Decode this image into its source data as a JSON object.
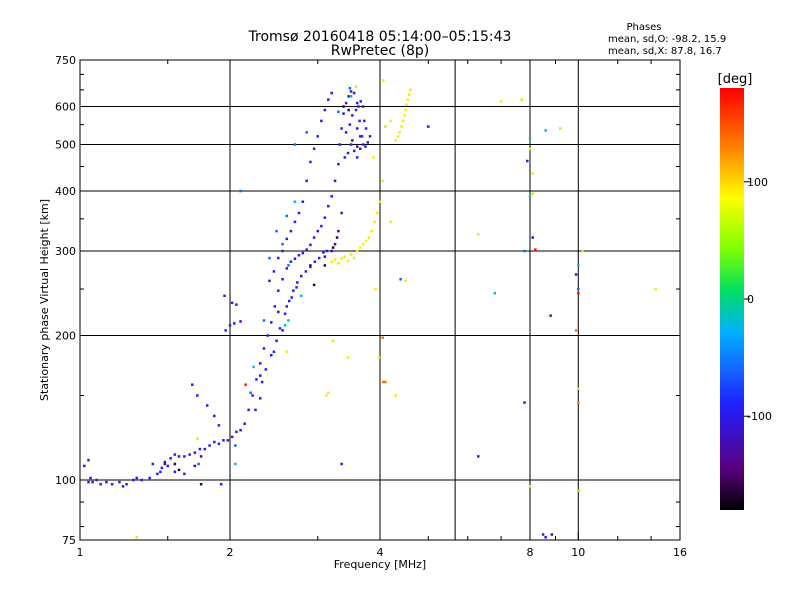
{
  "chart_data": {
    "type": "scatter",
    "title": "Tromsø 20160418 05:14:00–05:15:43",
    "subtitle": "RwPretec (8p)",
    "phases": {
      "title": "Phases",
      "line1": "mean, sd,O: -98.2, 15.9",
      "line2": "mean, sd,X:  87.8, 16.7"
    },
    "xlabel": "Frequency [MHz]",
    "ylabel": "Stationary phase Virtual Height [km]",
    "x_scale": "log",
    "y_scale": "log",
    "xlim": [
      1,
      16
    ],
    "ylim": [
      75,
      750
    ],
    "grid": true,
    "x_ticks": [
      1,
      2,
      4,
      8,
      10,
      16
    ],
    "x_tick_labels": [
      "1",
      "2",
      "4",
      "8",
      "10",
      "16"
    ],
    "x_gridlines": [
      2,
      4,
      5.66,
      8,
      10
    ],
    "y_ticks": [
      75,
      100,
      200,
      300,
      400,
      500,
      600,
      750
    ],
    "y_tick_labels": [
      "75",
      "100",
      "200",
      "300",
      "400",
      "500",
      "600",
      "750"
    ],
    "y_gridlines": [
      100,
      200,
      300,
      400,
      500,
      600
    ],
    "colorbar": {
      "label": "[deg]",
      "range": [
        -180,
        180
      ],
      "ticks": [
        100,
        0,
        -100
      ],
      "tick_labels": [
        "100",
        "0",
        "-100"
      ]
    },
    "series": [
      {
        "phase_deg": -95,
        "points": [
          [
            1.04,
            99
          ],
          [
            1.05,
            101
          ],
          [
            1.06,
            99
          ],
          [
            1.08,
            100
          ],
          [
            1.1,
            98
          ],
          [
            1.13,
            99
          ],
          [
            1.16,
            98
          ],
          [
            1.2,
            99
          ],
          [
            1.24,
            98
          ],
          [
            1.28,
            100
          ],
          [
            1.33,
            100
          ],
          [
            1.38,
            101
          ],
          [
            1.43,
            103
          ],
          [
            1.46,
            106
          ],
          [
            1.48,
            109
          ],
          [
            1.52,
            111
          ],
          [
            1.55,
            113
          ],
          [
            1.58,
            112
          ],
          [
            1.62,
            112
          ],
          [
            1.66,
            113
          ],
          [
            1.7,
            114
          ],
          [
            1.74,
            116
          ],
          [
            1.78,
            116
          ],
          [
            1.82,
            118
          ],
          [
            1.86,
            120
          ],
          [
            1.9,
            119
          ],
          [
            1.94,
            121
          ],
          [
            1.98,
            121
          ],
          [
            2.02,
            123
          ],
          [
            2.06,
            126
          ],
          [
            2.1,
            127
          ],
          [
            2.14,
            131
          ],
          [
            2.18,
            140
          ],
          [
            2.22,
            150
          ],
          [
            2.26,
            162
          ],
          [
            2.3,
            175
          ],
          [
            2.34,
            188
          ],
          [
            2.38,
            200
          ],
          [
            2.42,
            213
          ],
          [
            2.46,
            230
          ],
          [
            2.5,
            248
          ],
          [
            2.55,
            262
          ],
          [
            2.6,
            276
          ],
          [
            2.65,
            285
          ],
          [
            2.7,
            289
          ],
          [
            2.75,
            294
          ],
          [
            2.8,
            297
          ],
          [
            2.85,
            302
          ],
          [
            2.9,
            309
          ],
          [
            2.95,
            320
          ],
          [
            3.0,
            330
          ],
          [
            3.05,
            338
          ],
          [
            3.1,
            352
          ],
          [
            3.15,
            372
          ],
          [
            3.2,
            390
          ],
          [
            3.25,
            420
          ],
          [
            3.3,
            455
          ],
          [
            3.32,
            500
          ],
          [
            3.35,
            540
          ],
          [
            3.38,
            580
          ],
          [
            3.42,
            610
          ],
          [
            3.46,
            630
          ],
          [
            3.5,
            645
          ],
          [
            3.55,
            640
          ],
          [
            3.6,
            610
          ],
          [
            3.64,
            560
          ],
          [
            3.68,
            520
          ],
          [
            3.7,
            500
          ],
          [
            3.74,
            495
          ],
          [
            3.78,
            505
          ],
          [
            3.82,
            520
          ],
          [
            1.02,
            107
          ],
          [
            1.04,
            110
          ],
          [
            1.5,
            107
          ],
          [
            1.55,
            104
          ],
          [
            1.62,
            103
          ],
          [
            1.92,
            98
          ],
          [
            1.96,
            205
          ],
          [
            2.0,
            210
          ],
          [
            2.04,
            212
          ],
          [
            2.1,
            214
          ],
          [
            2.02,
            234
          ],
          [
            2.06,
            232
          ],
          [
            1.95,
            242
          ],
          [
            2.4,
            260
          ],
          [
            2.45,
            272
          ],
          [
            2.5,
            290
          ],
          [
            2.55,
            300
          ],
          [
            2.6,
            318
          ],
          [
            2.65,
            330
          ],
          [
            2.7,
            345
          ],
          [
            2.75,
            360
          ],
          [
            2.8,
            380
          ],
          [
            2.85,
            420
          ],
          [
            2.9,
            460
          ],
          [
            2.95,
            490
          ],
          [
            3.0,
            520
          ],
          [
            3.05,
            560
          ],
          [
            3.1,
            590
          ],
          [
            3.15,
            620
          ],
          [
            3.2,
            640
          ],
          [
            2.3,
            148
          ],
          [
            2.32,
            160
          ],
          [
            2.36,
            170
          ],
          [
            2.42,
            182
          ],
          [
            2.48,
            195
          ],
          [
            2.52,
            207
          ],
          [
            2.58,
            222
          ],
          [
            2.63,
            236
          ],
          [
            2.68,
            248
          ],
          [
            2.73,
            258
          ],
          [
            2.78,
            266
          ],
          [
            2.84,
            272
          ],
          [
            2.9,
            278
          ],
          [
            2.96,
            285
          ],
          [
            3.02,
            290
          ],
          [
            3.08,
            298
          ],
          [
            3.13,
            300
          ],
          [
            3.4,
            470
          ],
          [
            3.45,
            480
          ],
          [
            3.5,
            500
          ],
          [
            3.55,
            485
          ],
          [
            3.6,
            470
          ],
          [
            3.42,
            530
          ],
          [
            3.48,
            550
          ],
          [
            3.52,
            575
          ],
          [
            3.58,
            590
          ],
          [
            3.62,
            600
          ],
          [
            3.66,
            615
          ],
          [
            3.7,
            600
          ],
          [
            3.72,
            560
          ],
          [
            3.75,
            540
          ],
          [
            3.6,
            540
          ],
          [
            3.65,
            520
          ],
          [
            1.22,
            97
          ],
          [
            1.3,
            101
          ],
          [
            1.4,
            108
          ],
          [
            1.45,
            104
          ],
          [
            1.68,
            158
          ],
          [
            1.72,
            150
          ],
          [
            1.8,
            143
          ],
          [
            1.86,
            136
          ],
          [
            1.9,
            130
          ],
          [
            2.25,
            140
          ],
          [
            2.6,
            230
          ],
          [
            2.66,
            240
          ],
          [
            2.72,
            252
          ],
          [
            3.35,
            108
          ],
          [
            5.0,
            545
          ],
          [
            6.3,
            112
          ],
          [
            8.8,
            220
          ],
          [
            8.5,
            77
          ],
          [
            8.6,
            76
          ],
          [
            9.9,
            268
          ],
          [
            7.8,
            145
          ],
          [
            7.9,
            462
          ],
          [
            2.3,
            165
          ],
          [
            2.45,
            185
          ],
          [
            2.55,
            205
          ]
        ]
      },
      {
        "phase_deg": -130,
        "points": [
          [
            1.7,
            107
          ],
          [
            1.75,
            112
          ],
          [
            2.5,
            224
          ],
          [
            2.9,
            280
          ],
          [
            3.1,
            292
          ],
          [
            3.2,
            300
          ],
          [
            3.25,
            310
          ],
          [
            3.3,
            330
          ],
          [
            3.35,
            360
          ],
          [
            3.52,
            510
          ],
          [
            3.6,
            495
          ],
          [
            3.65,
            490
          ],
          [
            1.48,
            108
          ],
          [
            8.1,
            320
          ],
          [
            8.85,
            77
          ]
        ]
      },
      {
        "phase_deg": -160,
        "points": [
          [
            1.55,
            108
          ],
          [
            1.58,
            105
          ],
          [
            2.95,
            255
          ],
          [
            3.1,
            280
          ],
          [
            3.22,
            305
          ],
          [
            3.28,
            320
          ],
          [
            3.38,
            600
          ],
          [
            3.46,
            590
          ],
          [
            1.75,
            98
          ]
        ]
      },
      {
        "phase_deg": -60,
        "points": [
          [
            2.05,
            118
          ],
          [
            2.2,
            152
          ],
          [
            2.34,
            215
          ],
          [
            2.4,
            290
          ],
          [
            2.48,
            330
          ],
          [
            2.55,
            310
          ],
          [
            2.62,
            280
          ],
          [
            2.6,
            355
          ],
          [
            2.7,
            500
          ],
          [
            2.85,
            530
          ],
          [
            3.48,
            655
          ],
          [
            3.3,
            585
          ],
          [
            2.1,
            400
          ],
          [
            4.4,
            262
          ],
          [
            10.0,
            250
          ],
          [
            7.8,
            300
          ],
          [
            1.73,
            108
          ]
        ]
      },
      {
        "phase_deg": -20,
        "points": [
          [
            2.05,
            108
          ],
          [
            2.23,
            172
          ],
          [
            2.58,
            210
          ],
          [
            2.62,
            215
          ],
          [
            2.78,
            242
          ],
          [
            2.7,
            380
          ],
          [
            3.5,
            630
          ],
          [
            6.8,
            245
          ],
          [
            8.0,
            390
          ],
          [
            10.0,
            280
          ],
          [
            8.6,
            535
          ],
          [
            8.0,
            515
          ]
        ]
      },
      {
        "phase_deg": 60,
        "points": [
          [
            1.72,
            122
          ],
          [
            3.58,
            660
          ],
          [
            4.1,
            545
          ],
          [
            7.7,
            620
          ],
          [
            8.1,
            395
          ],
          [
            9.2,
            540
          ],
          [
            10.2,
            300
          ]
        ]
      },
      {
        "phase_deg": 95,
        "points": [
          [
            3.2,
            285
          ],
          [
            3.25,
            288
          ],
          [
            3.3,
            283
          ],
          [
            3.35,
            290
          ],
          [
            3.4,
            292
          ],
          [
            3.45,
            286
          ],
          [
            3.5,
            295
          ],
          [
            3.55,
            290
          ],
          [
            3.6,
            300
          ],
          [
            3.65,
            305
          ],
          [
            3.7,
            310
          ],
          [
            3.75,
            315
          ],
          [
            3.8,
            320
          ],
          [
            3.85,
            330
          ],
          [
            3.9,
            345
          ],
          [
            3.95,
            360
          ],
          [
            4.0,
            380
          ],
          [
            4.3,
            510
          ],
          [
            4.35,
            520
          ],
          [
            4.38,
            530
          ],
          [
            4.42,
            545
          ],
          [
            4.45,
            560
          ],
          [
            4.48,
            575
          ],
          [
            4.5,
            590
          ],
          [
            4.52,
            605
          ],
          [
            4.55,
            620
          ],
          [
            4.58,
            635
          ],
          [
            4.6,
            650
          ],
          [
            3.12,
            150
          ],
          [
            3.15,
            152
          ],
          [
            3.45,
            180
          ],
          [
            3.22,
            195
          ],
          [
            2.6,
            185
          ],
          [
            3.98,
            180
          ],
          [
            4.05,
            420
          ],
          [
            4.2,
            345
          ],
          [
            3.92,
            250
          ],
          [
            6.3,
            325
          ],
          [
            7.0,
            615
          ],
          [
            8.0,
            490
          ],
          [
            8.1,
            435
          ],
          [
            10.0,
            155
          ],
          [
            10.05,
            95
          ],
          [
            14.3,
            250
          ],
          [
            4.06,
            680
          ],
          [
            8.0,
            97
          ],
          [
            4.3,
            150
          ],
          [
            4.5,
            260
          ],
          [
            1.3,
            76
          ],
          [
            4.2,
            560
          ],
          [
            3.88,
            470
          ]
        ]
      },
      {
        "phase_deg": 170,
        "points": [
          [
            2.15,
            158
          ],
          [
            10.0,
            245
          ],
          [
            8.2,
            302
          ]
        ]
      },
      {
        "phase_deg": 135,
        "points": [
          [
            10.0,
            145
          ],
          [
            4.05,
            198
          ],
          [
            4.1,
            160
          ],
          [
            9.9,
            205
          ],
          [
            4.06,
            160
          ]
        ]
      }
    ]
  }
}
